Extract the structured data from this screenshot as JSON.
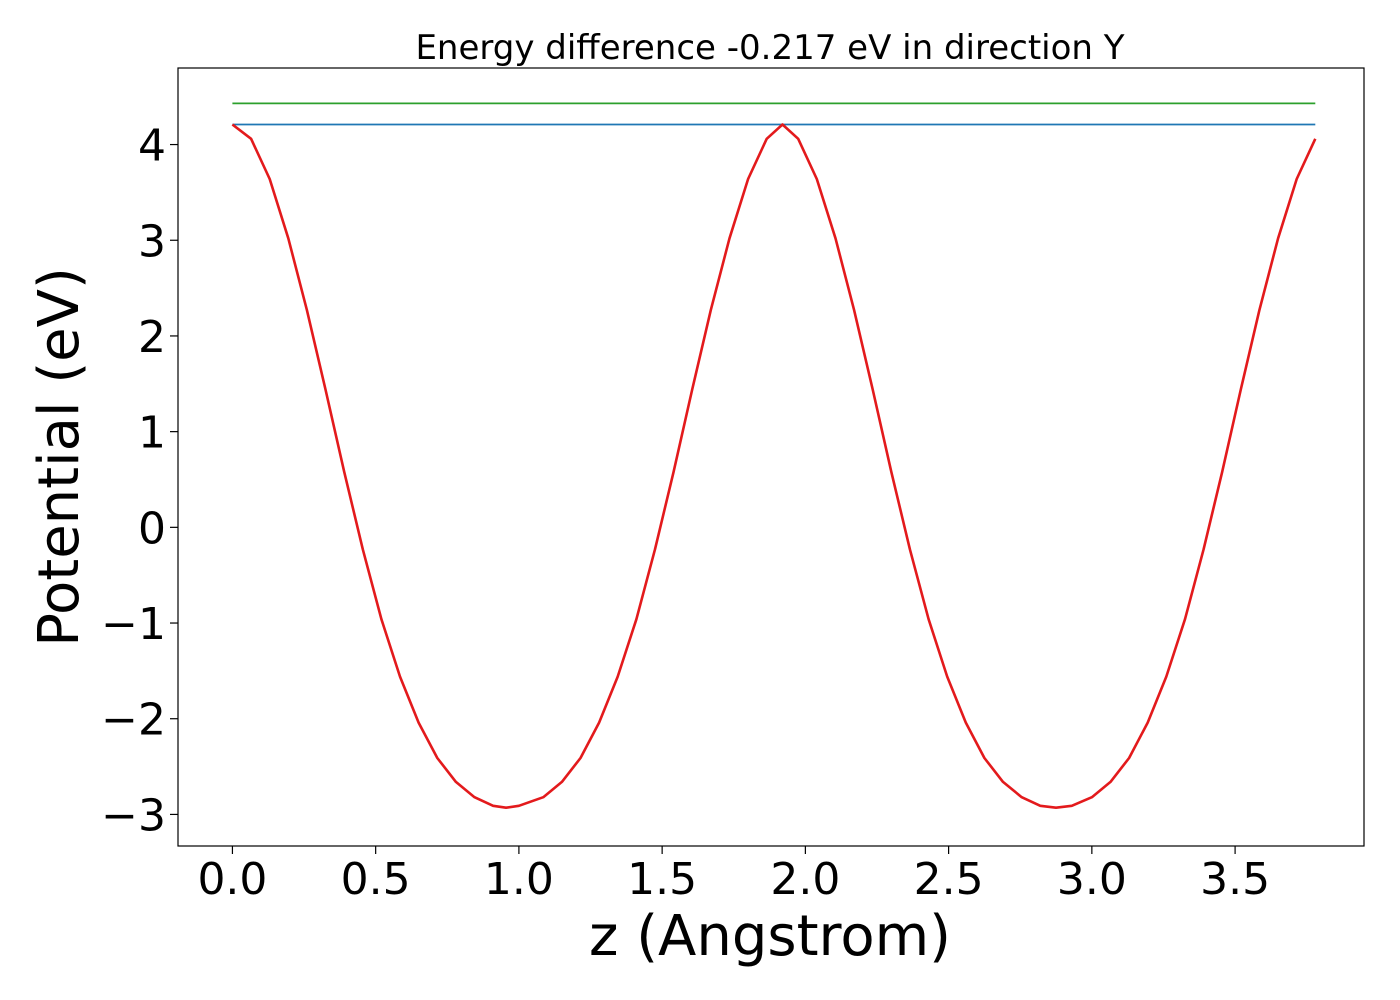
{
  "chart_data": {
    "type": "line",
    "title": "Energy difference -0.217 eV in direction Y",
    "xlabel": "z (Angstrom)",
    "ylabel": "Potential (eV)",
    "xlim": [
      -0.19,
      3.95
    ],
    "ylim": [
      -3.33,
      4.8
    ],
    "grid": false,
    "x_ticks": [
      0.0,
      0.5,
      1.0,
      1.5,
      2.0,
      2.5,
      3.0,
      3.5
    ],
    "x_tick_labels": [
      "0.0",
      "0.5",
      "1.0",
      "1.5",
      "2.0",
      "2.5",
      "3.0",
      "3.5"
    ],
    "y_ticks": [
      -3,
      -2,
      -1,
      0,
      1,
      2,
      3,
      4
    ],
    "y_tick_labels": [
      "−3",
      "−2",
      "−1",
      "0",
      "1",
      "2",
      "3",
      "4"
    ],
    "series": [
      {
        "color": "#2ca02c",
        "x": [
          0.0,
          3.78
        ],
        "y": [
          4.43,
          4.43
        ]
      },
      {
        "color": "#1f77b4",
        "x": [
          0.0,
          3.78
        ],
        "y": [
          4.21,
          4.21
        ]
      },
      {
        "color": "#e31a1c",
        "x": [
          0.0,
          0.065,
          0.13,
          0.195,
          0.26,
          0.325,
          0.39,
          0.455,
          0.52,
          0.585,
          0.65,
          0.715,
          0.78,
          0.845,
          0.91,
          0.955,
          1.0,
          1.085,
          1.15,
          1.215,
          1.28,
          1.345,
          1.41,
          1.475,
          1.54,
          1.605,
          1.67,
          1.735,
          1.8,
          1.865,
          1.92,
          1.975,
          2.04,
          2.105,
          2.17,
          2.235,
          2.3,
          2.365,
          2.43,
          2.495,
          2.56,
          2.625,
          2.69,
          2.755,
          2.82,
          2.875,
          2.93,
          3.0,
          3.065,
          3.13,
          3.195,
          3.26,
          3.325,
          3.39,
          3.455,
          3.52,
          3.585,
          3.65,
          3.715,
          3.78
        ],
        "y": [
          4.21,
          4.06,
          3.64,
          3.02,
          2.27,
          1.44,
          0.58,
          -0.23,
          -0.96,
          -1.56,
          -2.04,
          -2.41,
          -2.66,
          -2.82,
          -2.91,
          -2.93,
          -2.91,
          -2.82,
          -2.66,
          -2.41,
          -2.04,
          -1.56,
          -0.96,
          -0.23,
          0.58,
          1.44,
          2.27,
          3.02,
          3.64,
          4.06,
          4.21,
          4.06,
          3.64,
          3.02,
          2.27,
          1.44,
          0.58,
          -0.23,
          -0.96,
          -1.56,
          -2.04,
          -2.41,
          -2.66,
          -2.82,
          -2.91,
          -2.93,
          -2.91,
          -2.82,
          -2.66,
          -2.41,
          -2.04,
          -1.56,
          -0.96,
          -0.23,
          0.58,
          1.44,
          2.27,
          3.02,
          3.64,
          4.06
        ]
      }
    ]
  }
}
